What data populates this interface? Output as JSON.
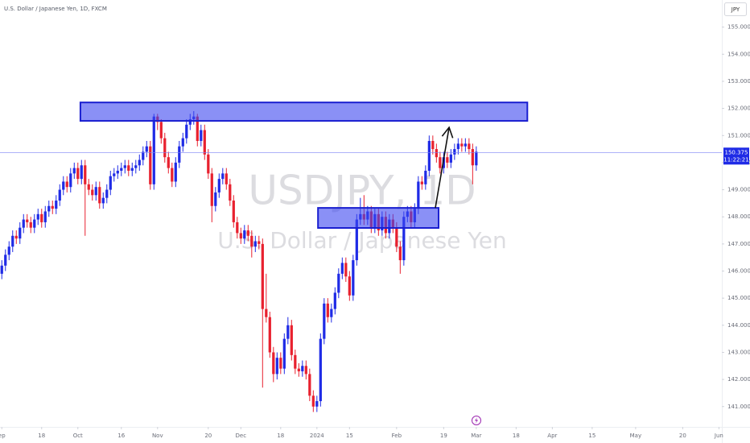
{
  "chart_data": {
    "type": "candlestick",
    "title": "U.S. Dollar / Japanese Yen, 1D, FXCM",
    "watermark": "USDJPY, 1D",
    "watermark_subtitle": "U.S. Dollar / Japanese Yen",
    "currency": "JPY",
    "up_color": "#1f2be6",
    "down_color": "#e8212f",
    "xlim": [
      -0.5,
      198.8
    ],
    "ylim": [
      140.25,
      156
    ],
    "yticks": [
      {
        "value": 141,
        "label": "141.000"
      },
      {
        "value": 142,
        "label": "142.000"
      },
      {
        "value": 143,
        "label": "143.000"
      },
      {
        "value": 144,
        "label": "144.000"
      },
      {
        "value": 145,
        "label": "145.000"
      },
      {
        "value": 146,
        "label": "146.000"
      },
      {
        "value": 147,
        "label": "147.000"
      },
      {
        "value": 148,
        "label": "148.000"
      },
      {
        "value": 149,
        "label": "149.000"
      },
      {
        "value": 150,
        "label": "150.000"
      },
      {
        "value": 151,
        "label": "151.000"
      },
      {
        "value": 152,
        "label": "152.000"
      },
      {
        "value": 153,
        "label": "153.000"
      },
      {
        "value": 154,
        "label": "154.000"
      },
      {
        "value": 155,
        "label": "155.000"
      }
    ],
    "xticks": [
      {
        "value": 0,
        "label": "ep"
      },
      {
        "value": 11,
        "label": "18"
      },
      {
        "value": 21,
        "label": "Oct"
      },
      {
        "value": 33,
        "label": "16"
      },
      {
        "value": 43,
        "label": "Nov"
      },
      {
        "value": 57,
        "label": "20"
      },
      {
        "value": 66,
        "label": "Dec"
      },
      {
        "value": 77,
        "label": "18"
      },
      {
        "value": 87,
        "label": "2024"
      },
      {
        "value": 96,
        "label": "15"
      },
      {
        "value": 109,
        "label": "Feb"
      },
      {
        "value": 122,
        "label": "19"
      },
      {
        "value": 131,
        "label": "Mar"
      },
      {
        "value": 142,
        "label": "18"
      },
      {
        "value": 152,
        "label": "Apr"
      },
      {
        "value": 163,
        "label": "15"
      },
      {
        "value": 175,
        "label": "May"
      },
      {
        "value": 188,
        "label": "20"
      },
      {
        "value": 198,
        "label": "Jun"
      }
    ],
    "current_price": {
      "value": 150.375,
      "label": "150.375"
    },
    "countdown": "11:22:21",
    "zones": [
      {
        "x": [
          21.7,
          145.1
        ],
        "y": [
          151.54,
          152.22
        ]
      },
      {
        "x": [
          87.3,
          120.6
        ],
        "y": [
          147.59,
          148.33
        ]
      }
    ],
    "arrow": {
      "x": [
        119.7,
        123.5
      ],
      "y": [
        148.33,
        151.3
      ]
    },
    "candles": [
      [
        145.9,
        146.4,
        145.7,
        146.2
      ],
      [
        146.2,
        146.8,
        146.0,
        146.6
      ],
      [
        146.6,
        147.1,
        146.4,
        146.9
      ],
      [
        146.9,
        147.5,
        146.7,
        147.3
      ],
      [
        147.3,
        147.5,
        147.0,
        147.2
      ],
      [
        147.2,
        147.8,
        147.0,
        147.6
      ],
      [
        147.6,
        148.1,
        147.4,
        147.9
      ],
      [
        147.9,
        148.1,
        147.6,
        147.8
      ],
      [
        147.8,
        148.0,
        147.4,
        147.6
      ],
      [
        147.6,
        148.1,
        147.4,
        147.9
      ],
      [
        147.9,
        148.3,
        147.7,
        148.1
      ],
      [
        148.1,
        148.3,
        147.6,
        147.8
      ],
      [
        147.8,
        148.4,
        147.6,
        148.2
      ],
      [
        148.2,
        148.6,
        148.0,
        148.4
      ],
      [
        148.4,
        148.6,
        148.1,
        148.3
      ],
      [
        148.3,
        148.8,
        148.1,
        148.6
      ],
      [
        148.6,
        149.2,
        148.4,
        149.0
      ],
      [
        149.0,
        149.5,
        148.8,
        149.3
      ],
      [
        149.3,
        149.5,
        148.9,
        149.1
      ],
      [
        149.1,
        149.8,
        148.9,
        149.6
      ],
      [
        149.6,
        150.0,
        149.4,
        149.8
      ],
      [
        149.8,
        150.0,
        149.2,
        149.4
      ],
      [
        149.4,
        150.1,
        149.2,
        149.9
      ],
      [
        149.9,
        150.1,
        147.3,
        149.2
      ],
      [
        149.2,
        149.4,
        148.8,
        149.0
      ],
      [
        149.0,
        149.2,
        148.6,
        148.8
      ],
      [
        148.8,
        149.3,
        148.6,
        149.1
      ],
      [
        149.1,
        149.3,
        148.3,
        148.5
      ],
      [
        148.5,
        148.9,
        148.3,
        148.7
      ],
      [
        148.7,
        149.2,
        148.5,
        149.0
      ],
      [
        149.0,
        149.7,
        148.8,
        149.5
      ],
      [
        149.5,
        149.8,
        149.3,
        149.6
      ],
      [
        149.6,
        149.9,
        149.4,
        149.7
      ],
      [
        149.7,
        150.0,
        149.5,
        149.8
      ],
      [
        149.8,
        150.1,
        149.6,
        149.9
      ],
      [
        149.9,
        150.1,
        149.5,
        149.7
      ],
      [
        149.7,
        150.0,
        149.5,
        149.8
      ],
      [
        149.8,
        150.1,
        149.6,
        149.9
      ],
      [
        149.9,
        150.3,
        149.7,
        150.1
      ],
      [
        150.1,
        150.6,
        149.9,
        150.4
      ],
      [
        150.4,
        150.8,
        150.2,
        150.6
      ],
      [
        150.6,
        150.8,
        149.0,
        149.2
      ],
      [
        149.2,
        151.8,
        149.0,
        151.7
      ],
      [
        151.7,
        151.8,
        151.2,
        151.5
      ],
      [
        151.5,
        151.6,
        150.7,
        150.9
      ],
      [
        150.9,
        151.1,
        150.0,
        150.2
      ],
      [
        150.2,
        150.4,
        149.6,
        149.8
      ],
      [
        149.8,
        150.0,
        149.1,
        149.3
      ],
      [
        149.3,
        150.2,
        149.1,
        150.0
      ],
      [
        150.0,
        150.8,
        149.8,
        150.6
      ],
      [
        150.6,
        151.1,
        150.4,
        150.9
      ],
      [
        150.9,
        151.6,
        150.7,
        151.4
      ],
      [
        151.4,
        151.8,
        151.2,
        151.6
      ],
      [
        151.6,
        151.9,
        151.4,
        151.7
      ],
      [
        151.7,
        151.8,
        150.6,
        150.8
      ],
      [
        150.8,
        151.4,
        150.6,
        151.2
      ],
      [
        151.2,
        151.4,
        150.1,
        150.3
      ],
      [
        150.3,
        150.5,
        149.4,
        149.6
      ],
      [
        149.6,
        149.8,
        147.8,
        148.4
      ],
      [
        148.4,
        149.1,
        148.2,
        148.9
      ],
      [
        148.9,
        149.6,
        148.7,
        149.4
      ],
      [
        149.4,
        149.8,
        149.2,
        149.6
      ],
      [
        149.6,
        149.8,
        149.0,
        149.2
      ],
      [
        149.2,
        149.4,
        148.4,
        148.6
      ],
      [
        148.6,
        148.8,
        147.6,
        147.8
      ],
      [
        147.8,
        148.0,
        147.2,
        147.4
      ],
      [
        147.4,
        147.6,
        147.0,
        147.2
      ],
      [
        147.2,
        147.7,
        147.0,
        147.5
      ],
      [
        147.5,
        147.7,
        147.1,
        147.3
      ],
      [
        147.3,
        147.5,
        146.5,
        146.9
      ],
      [
        146.9,
        147.3,
        146.7,
        147.1
      ],
      [
        147.1,
        147.3,
        146.8,
        147.0
      ],
      [
        147.0,
        147.2,
        141.7,
        144.6
      ],
      [
        144.6,
        145.9,
        144.1,
        144.3
      ],
      [
        144.3,
        144.5,
        142.8,
        143.0
      ],
      [
        143.0,
        143.2,
        141.9,
        142.2
      ],
      [
        142.2,
        143.0,
        142.0,
        142.8
      ],
      [
        142.8,
        143.0,
        142.2,
        142.4
      ],
      [
        142.4,
        143.7,
        142.2,
        143.5
      ],
      [
        143.5,
        144.3,
        143.3,
        144.0
      ],
      [
        144.0,
        144.2,
        142.7,
        142.9
      ],
      [
        142.9,
        143.1,
        142.2,
        142.4
      ],
      [
        142.4,
        142.6,
        142.1,
        142.3
      ],
      [
        142.3,
        142.7,
        142.1,
        142.5
      ],
      [
        142.5,
        142.7,
        142.0,
        142.2
      ],
      [
        142.2,
        142.4,
        141.2,
        141.4
      ],
      [
        141.4,
        141.6,
        140.8,
        141.0
      ],
      [
        141.0,
        141.4,
        140.8,
        141.2
      ],
      [
        141.2,
        143.7,
        141.0,
        143.5
      ],
      [
        143.5,
        145.0,
        143.3,
        144.8
      ],
      [
        144.8,
        145.0,
        144.1,
        144.3
      ],
      [
        144.3,
        144.8,
        144.1,
        144.6
      ],
      [
        144.6,
        145.4,
        144.4,
        145.2
      ],
      [
        145.2,
        146.1,
        145.0,
        145.9
      ],
      [
        145.9,
        146.5,
        145.7,
        146.3
      ],
      [
        146.3,
        146.5,
        145.6,
        145.8
      ],
      [
        145.8,
        146.0,
        144.9,
        145.1
      ],
      [
        145.1,
        146.6,
        144.9,
        146.4
      ],
      [
        146.4,
        148.1,
        146.2,
        147.9
      ],
      [
        147.9,
        148.7,
        147.7,
        148.1
      ],
      [
        148.1,
        148.8,
        147.7,
        147.9
      ],
      [
        147.9,
        148.4,
        147.7,
        148.2
      ],
      [
        148.2,
        148.4,
        147.4,
        147.6
      ],
      [
        147.6,
        148.3,
        147.4,
        148.1
      ],
      [
        148.1,
        148.3,
        147.3,
        147.5
      ],
      [
        147.5,
        148.2,
        147.3,
        148.0
      ],
      [
        148.0,
        148.2,
        147.2,
        147.4
      ],
      [
        147.4,
        148.1,
        147.2,
        147.9
      ],
      [
        147.9,
        148.1,
        147.4,
        147.6
      ],
      [
        147.6,
        147.8,
        146.7,
        146.9
      ],
      [
        146.9,
        147.1,
        145.9,
        146.4
      ],
      [
        146.4,
        148.2,
        146.2,
        148.0
      ],
      [
        148.0,
        148.4,
        147.8,
        148.2
      ],
      [
        148.2,
        148.4,
        147.6,
        147.8
      ],
      [
        147.8,
        148.5,
        147.6,
        148.3
      ],
      [
        148.3,
        149.5,
        148.1,
        149.3
      ],
      [
        149.3,
        149.5,
        149.0,
        149.2
      ],
      [
        149.2,
        149.9,
        149.0,
        149.7
      ],
      [
        149.7,
        151.0,
        149.5,
        150.8
      ],
      [
        150.8,
        151.0,
        150.3,
        150.5
      ],
      [
        150.5,
        150.7,
        150.0,
        150.2
      ],
      [
        150.2,
        150.4,
        149.6,
        149.8
      ],
      [
        149.8,
        150.4,
        149.6,
        150.2
      ],
      [
        150.2,
        150.4,
        149.8,
        150.0
      ],
      [
        150.0,
        150.5,
        149.8,
        150.3
      ],
      [
        150.3,
        150.7,
        150.1,
        150.5
      ],
      [
        150.5,
        150.9,
        150.3,
        150.7
      ],
      [
        150.7,
        150.9,
        150.4,
        150.6
      ],
      [
        150.6,
        150.9,
        150.4,
        150.7
      ],
      [
        150.7,
        150.9,
        150.3,
        150.5
      ],
      [
        150.5,
        150.7,
        149.2,
        149.9
      ],
      [
        149.9,
        150.6,
        149.7,
        150.4
      ]
    ]
  }
}
